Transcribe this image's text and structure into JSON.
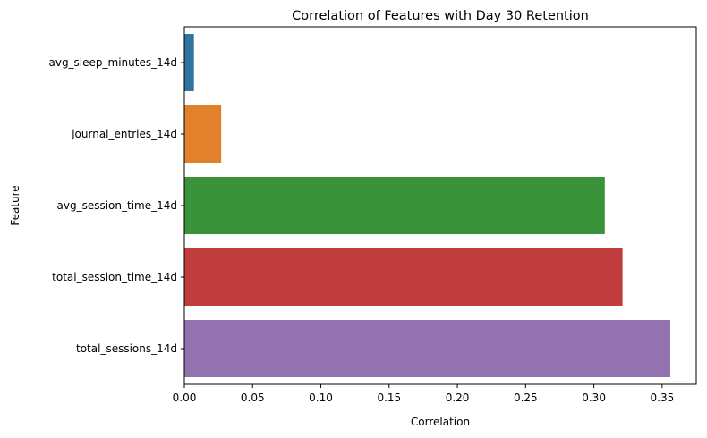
{
  "chart_data": {
    "type": "bar",
    "orientation": "horizontal",
    "title": "Correlation of Features with Day 30 Retention",
    "xlabel": "Correlation",
    "ylabel": "Feature",
    "categories": [
      "avg_sleep_minutes_14d",
      "journal_entries_14d",
      "avg_session_time_14d",
      "total_session_time_14d",
      "total_sessions_14d"
    ],
    "values": [
      0.007,
      0.027,
      0.308,
      0.321,
      0.356
    ],
    "colors": [
      "#3274a1",
      "#e1812c",
      "#3a923a",
      "#c03d3e",
      "#9372b2"
    ],
    "xlim": [
      0,
      0.375
    ],
    "xticks": [
      0.0,
      0.05,
      0.1,
      0.15,
      0.2,
      0.25,
      0.3,
      0.35
    ],
    "xtick_labels": [
      "0.00",
      "0.05",
      "0.10",
      "0.15",
      "0.20",
      "0.25",
      "0.30",
      "0.35"
    ],
    "grid": false,
    "legend": "none"
  }
}
